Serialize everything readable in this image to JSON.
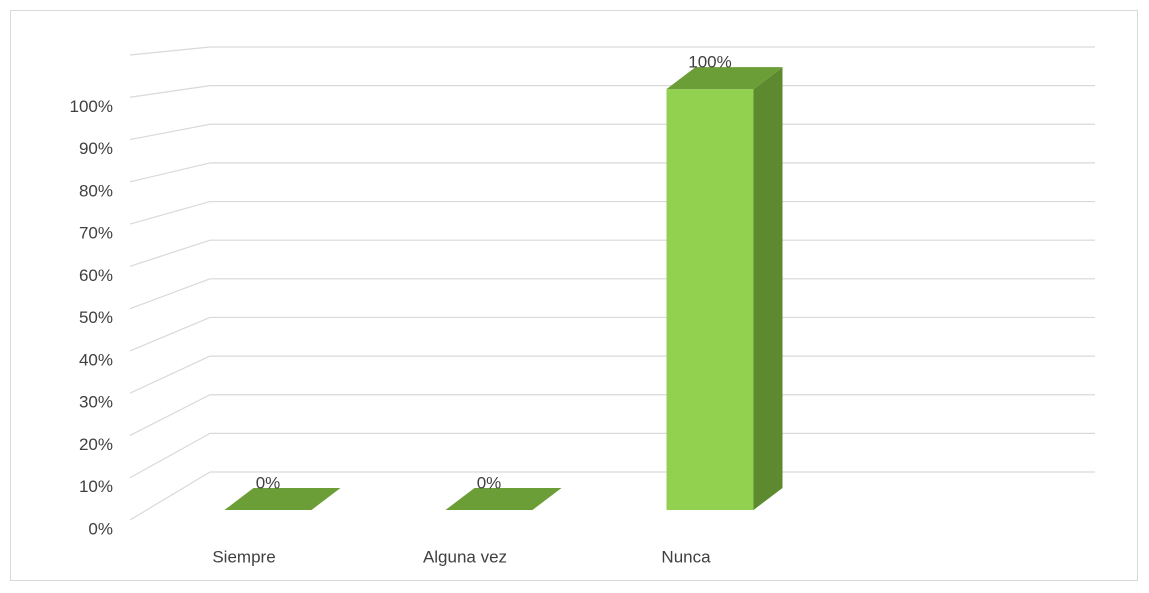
{
  "chart_data": {
    "type": "bar3d",
    "categories": [
      "Siempre",
      "Alguna vez",
      "Nunca"
    ],
    "values": [
      0,
      0,
      100
    ],
    "value_labels": [
      "0%",
      "0%",
      "100%"
    ],
    "color": "#92d050",
    "ylim": [
      0,
      110
    ],
    "yticks": [
      {
        "value": 0,
        "label": "0%"
      },
      {
        "value": 10,
        "label": "10%"
      },
      {
        "value": 20,
        "label": "20%"
      },
      {
        "value": 30,
        "label": "30%"
      },
      {
        "value": 40,
        "label": "40%"
      },
      {
        "value": 50,
        "label": "50%"
      },
      {
        "value": 60,
        "label": "60%"
      },
      {
        "value": 70,
        "label": "70%"
      },
      {
        "value": 80,
        "label": "80%"
      },
      {
        "value": 90,
        "label": "90%"
      },
      {
        "value": 100,
        "label": "100%"
      }
    ],
    "grid": true
  }
}
